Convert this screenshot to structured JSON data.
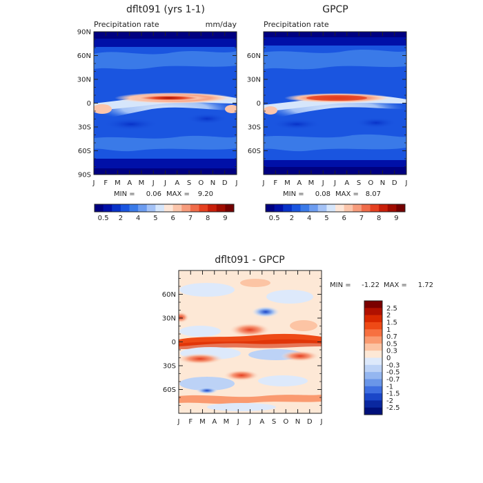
{
  "months": [
    "J",
    "F",
    "M",
    "A",
    "M",
    "J",
    "J",
    "A",
    "S",
    "O",
    "N",
    "D",
    "J"
  ],
  "chart_data": [
    {
      "type": "heatmap",
      "title": "dflt091 (yrs 1-1)",
      "subtitle": "Precipitation rate",
      "units": "mm/day",
      "x_ticks": [
        "J",
        "F",
        "M",
        "A",
        "M",
        "J",
        "J",
        "A",
        "S",
        "O",
        "N",
        "D",
        "J"
      ],
      "y_ticks": [
        "90N",
        "60N",
        "30N",
        "0",
        "30S",
        "60S",
        "90S"
      ],
      "y_tick_values": [
        90,
        60,
        30,
        0,
        -30,
        -60,
        -90
      ],
      "ylim": [
        -90,
        90
      ],
      "stats": {
        "min_label": "MIN =",
        "min": "0.06",
        "max_label": "MAX =",
        "max": "9.20"
      },
      "colorbar": {
        "labels": [
          "0.5",
          "2",
          "4",
          "5",
          "6",
          "7",
          "8",
          "9"
        ],
        "levels": [
          0.5,
          1,
          2,
          3,
          4,
          4.5,
          5,
          5.5,
          6,
          6.5,
          7,
          7.5,
          8,
          8.5,
          9
        ],
        "colors": [
          "#000080",
          "#0010a8",
          "#0832c8",
          "#1a55e0",
          "#3a7ae8",
          "#6c9cf0",
          "#a4c2f6",
          "#d6e6fb",
          "#fde6d8",
          "#fbc5ab",
          "#f79c7c",
          "#f06c4a",
          "#e54020",
          "#c81f0a",
          "#a00c00",
          "#740000"
        ]
      }
    },
    {
      "type": "heatmap",
      "title": "GPCP",
      "subtitle": "Precipitation rate",
      "x_ticks": [
        "J",
        "F",
        "M",
        "A",
        "M",
        "J",
        "J",
        "A",
        "S",
        "O",
        "N",
        "D",
        "J"
      ],
      "y_ticks": [
        "60N",
        "30N",
        "0",
        "30S",
        "60S"
      ],
      "y_tick_values": [
        60,
        30,
        0,
        -30,
        -60
      ],
      "ylim": [
        -90,
        90
      ],
      "stats": {
        "min_label": "MIN =",
        "min": "0.08",
        "max_label": "MAX =",
        "max": "8.07"
      },
      "colorbar": {
        "labels": [
          "0.5",
          "2",
          "4",
          "5",
          "6",
          "7",
          "8",
          "9"
        ],
        "levels": [
          0.5,
          1,
          2,
          3,
          4,
          4.5,
          5,
          5.5,
          6,
          6.5,
          7,
          7.5,
          8,
          8.5,
          9
        ],
        "colors": [
          "#000080",
          "#0010a8",
          "#0832c8",
          "#1a55e0",
          "#3a7ae8",
          "#6c9cf0",
          "#a4c2f6",
          "#d6e6fb",
          "#fde6d8",
          "#fbc5ab",
          "#f79c7c",
          "#f06c4a",
          "#e54020",
          "#c81f0a",
          "#a00c00",
          "#740000"
        ]
      }
    },
    {
      "type": "heatmap",
      "title": "dflt091 - GPCP",
      "x_ticks": [
        "J",
        "F",
        "M",
        "A",
        "M",
        "J",
        "J",
        "A",
        "S",
        "O",
        "N",
        "D",
        "J"
      ],
      "y_ticks": [
        "60N",
        "30N",
        "0",
        "30S",
        "60S"
      ],
      "y_tick_values": [
        60,
        30,
        0,
        -30,
        -60
      ],
      "ylim": [
        -90,
        90
      ],
      "stats": {
        "min_label": "MIN =",
        "min": "-1.22",
        "max_label": "MAX =",
        "max": "1.72"
      },
      "colorbar": {
        "labels": [
          "2.5",
          "2",
          "1.5",
          "1",
          "0.7",
          "0.5",
          "0.3",
          "0",
          "-0.3",
          "-0.5",
          "-0.7",
          "-1",
          "-1.5",
          "-2",
          "-2.5"
        ],
        "levels": [
          2.5,
          2,
          1.5,
          1,
          0.7,
          0.5,
          0.3,
          0,
          -0.3,
          -0.5,
          -0.7,
          -1,
          -1.5,
          -2,
          -2.5
        ],
        "colors": [
          "#7a0000",
          "#b01000",
          "#d82800",
          "#ee4a16",
          "#f77040",
          "#fa9a70",
          "#fcc4a4",
          "#fde8d6",
          "#dde9fb",
          "#bcd2f6",
          "#94b6f0",
          "#6a96e8",
          "#3e6ee0",
          "#1a46c8",
          "#0a28a0",
          "#00107a"
        ]
      }
    }
  ]
}
